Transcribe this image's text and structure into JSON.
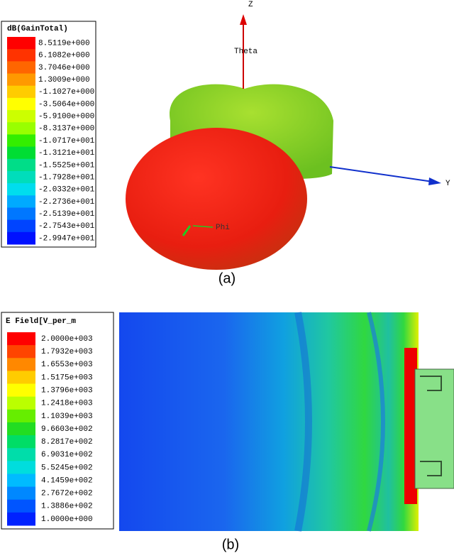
{
  "panels": [
    {
      "legend": {
        "title": "dB(GainTotal)",
        "labels": [
          "8.5119e+000",
          "6.1082e+000",
          "3.7046e+000",
          "1.3009e+000",
          "-1.1027e+000",
          "-3.5064e+000",
          "-5.9100e+000",
          "-8.3137e+000",
          "-1.0717e+001",
          "-1.3121e+001",
          "-1.5525e+001",
          "-1.7928e+001",
          "-2.0332e+001",
          "-2.2736e+001",
          "-2.5139e+001",
          "-2.7543e+001",
          "-2.9947e+001"
        ],
        "colors": [
          "#ff0000",
          "#ff3300",
          "#ff6600",
          "#ff9900",
          "#ffcc00",
          "#ffff00",
          "#ccff00",
          "#99ff00",
          "#33ee00",
          "#00dd33",
          "#00dd88",
          "#00ddbb",
          "#00ddee",
          "#00aaff",
          "#0077ff",
          "#0044ff",
          "#0011ff"
        ]
      },
      "axes": {
        "z": "Z",
        "theta": "Theta",
        "y": "Y",
        "phi": "Phi"
      },
      "caption": "(a)"
    },
    {
      "legend": {
        "title": "E Field[V_per_m",
        "labels": [
          "2.0000e+003",
          "1.7932e+003",
          "1.6553e+003",
          "1.5175e+003",
          "1.3796e+003",
          "1.2418e+003",
          "1.1039e+003",
          "9.6603e+002",
          "8.2817e+002",
          "6.9031e+002",
          "5.5245e+002",
          "4.1459e+002",
          "2.7672e+002",
          "1.3886e+002",
          "1.0000e+000"
        ],
        "colors": [
          "#ff0000",
          "#ff4400",
          "#ff8800",
          "#ffcc00",
          "#ffff00",
          "#bbff00",
          "#66ee00",
          "#22dd22",
          "#00dd66",
          "#00ddaa",
          "#00dddd",
          "#00bbff",
          "#0088ff",
          "#0055ff",
          "#0022ff"
        ]
      },
      "caption": "(b)"
    }
  ]
}
